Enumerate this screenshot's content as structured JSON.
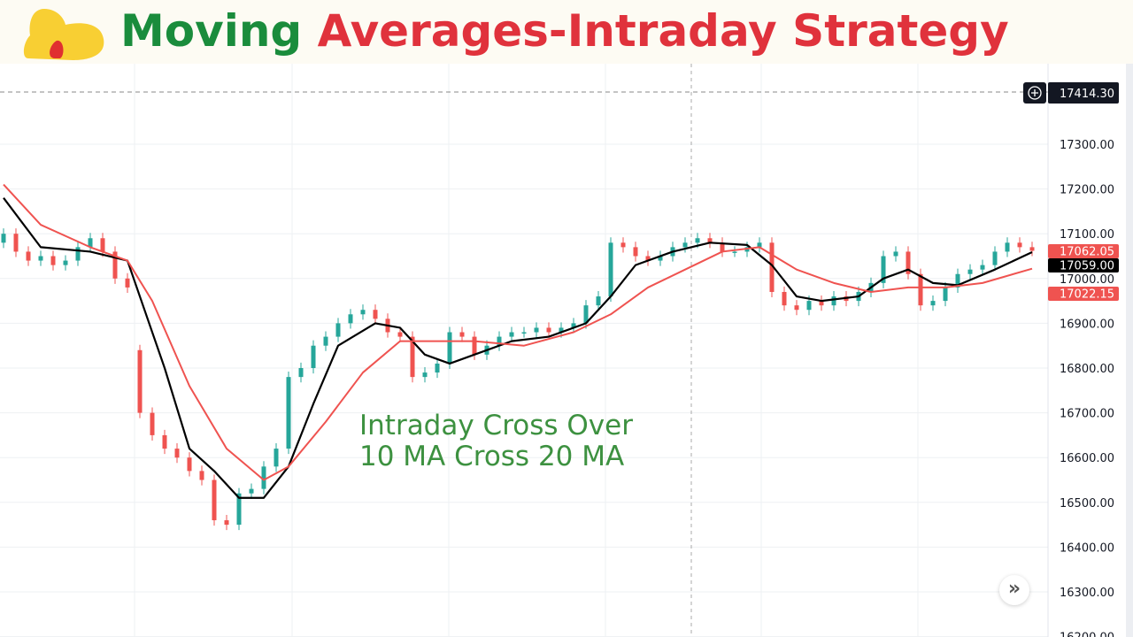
{
  "title": {
    "part1": "Moving",
    "part2": "Averages-Intraday Strategy"
  },
  "annotation": {
    "line1": "Intraday Cross Over",
    "line2": "10 MA Cross 20 MA"
  },
  "scroll_button": {
    "icon": "double-chevron-right-icon",
    "label": "»"
  },
  "colors": {
    "up": "#26a69a",
    "down": "#ef5350",
    "ma10": "#000000",
    "ma20": "#ef5350",
    "title_green": "#1a8c3c",
    "title_red": "#e0323c",
    "annotation": "#3d9140"
  },
  "chart_data": {
    "type": "candlestick",
    "title": "",
    "ylim": [
      16200,
      17420
    ],
    "grid": true,
    "y_ticks": [
      "17300.00",
      "17200.00",
      "17100.00",
      "17000.00",
      "16900.00",
      "16800.00",
      "16700.00",
      "16600.00",
      "16500.00",
      "16400.00",
      "16300.00",
      "16200.00"
    ],
    "y_tick_values": [
      17300,
      17200,
      17100,
      17000,
      16900,
      16800,
      16700,
      16600,
      16500,
      16400,
      16300,
      16200
    ],
    "crosshair_price": "17414.30",
    "price_labels": [
      {
        "text": "17062.05",
        "value": 17062.05,
        "color": "#ef5350"
      },
      {
        "text": "17059.00",
        "value": 17059.0,
        "color": "#000000"
      },
      {
        "text": "17022.15",
        "value": 17022.15,
        "color": "#ef5350"
      }
    ],
    "first_open": 17080,
    "close": [
      17100,
      17060,
      17040,
      17050,
      17030,
      17040,
      17070,
      17090,
      17060,
      17000,
      16980,
      16700,
      16650,
      16620,
      16600,
      16570,
      16550,
      16460,
      16450,
      16520,
      16530,
      16580,
      16620,
      16780,
      16800,
      16850,
      16870,
      16900,
      16920,
      16930,
      16910,
      16880,
      16870,
      16780,
      16790,
      16810,
      16880,
      16870,
      16830,
      16850,
      16870,
      16880,
      16880,
      16890,
      16880,
      16890,
      16900,
      16940,
      16960,
      17080,
      17070,
      17050,
      17040,
      17050,
      17070,
      17080,
      17090,
      17080,
      17060,
      17060,
      17070,
      17080,
      16970,
      16940,
      16930,
      16950,
      16940,
      16960,
      16950,
      16970,
      16990,
      17050,
      17060,
      17010,
      16940,
      16950,
      16980,
      17010,
      17020,
      17030,
      17060,
      17080,
      17070,
      17062
    ],
    "gap_opens": {
      "11": 16840
    },
    "series": [
      {
        "key": "ma10",
        "points": [
          [
            0,
            17180
          ],
          [
            3,
            17070
          ],
          [
            7,
            17060
          ],
          [
            10,
            17040
          ],
          [
            13,
            16800
          ],
          [
            15,
            16620
          ],
          [
            17,
            16570
          ],
          [
            19,
            16510
          ],
          [
            21,
            16510
          ],
          [
            23,
            16580
          ],
          [
            25,
            16720
          ],
          [
            27,
            16850
          ],
          [
            30,
            16900
          ],
          [
            32,
            16890
          ],
          [
            34,
            16830
          ],
          [
            36,
            16810
          ],
          [
            38,
            16830
          ],
          [
            41,
            16860
          ],
          [
            44,
            16870
          ],
          [
            47,
            16900
          ],
          [
            49,
            16960
          ],
          [
            51,
            17030
          ],
          [
            54,
            17060
          ],
          [
            57,
            17080
          ],
          [
            60,
            17075
          ],
          [
            62,
            17030
          ],
          [
            64,
            16960
          ],
          [
            66,
            16950
          ],
          [
            69,
            16960
          ],
          [
            71,
            17000
          ],
          [
            73,
            17020
          ],
          [
            75,
            16990
          ],
          [
            77,
            16985
          ],
          [
            80,
            17020
          ],
          [
            83,
            17059
          ]
        ]
      },
      {
        "key": "ma20",
        "points": [
          [
            0,
            17210
          ],
          [
            3,
            17120
          ],
          [
            7,
            17070
          ],
          [
            10,
            17040
          ],
          [
            12,
            16950
          ],
          [
            15,
            16760
          ],
          [
            18,
            16620
          ],
          [
            21,
            16550
          ],
          [
            23,
            16580
          ],
          [
            26,
            16680
          ],
          [
            29,
            16790
          ],
          [
            32,
            16860
          ],
          [
            35,
            16860
          ],
          [
            38,
            16860
          ],
          [
            42,
            16850
          ],
          [
            46,
            16880
          ],
          [
            49,
            16920
          ],
          [
            52,
            16980
          ],
          [
            55,
            17020
          ],
          [
            58,
            17060
          ],
          [
            61,
            17070
          ],
          [
            64,
            17020
          ],
          [
            67,
            16990
          ],
          [
            70,
            16970
          ],
          [
            73,
            16980
          ],
          [
            76,
            16980
          ],
          [
            79,
            16990
          ],
          [
            83,
            17022
          ]
        ]
      }
    ]
  }
}
